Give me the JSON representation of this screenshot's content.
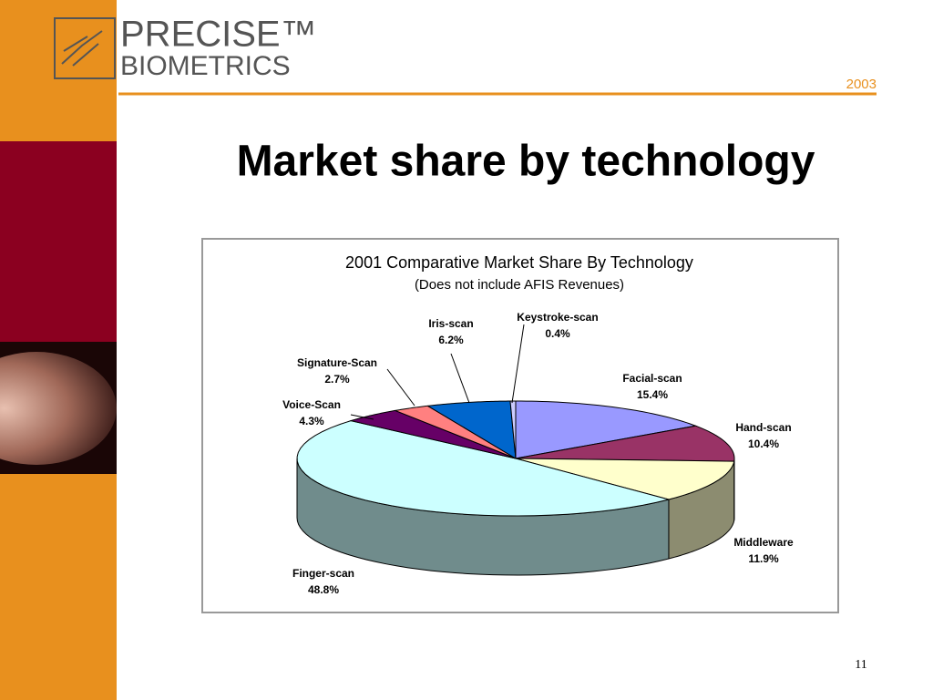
{
  "slide": {
    "logo_top": "PRECISE™",
    "logo_bottom": "BIOMETRICS",
    "year": "2003",
    "title": "Market share by technology",
    "page_number": "11"
  },
  "chart_data": {
    "type": "pie",
    "title": "2001 Comparative Market Share By Technology",
    "subtitle": "(Does not include AFIS Revenues)",
    "categories": [
      "Facial-scan",
      "Hand-scan",
      "Middleware",
      "Finger-scan",
      "Voice-Scan",
      "Signature-Scan",
      "Iris-scan",
      "Keystroke-scan"
    ],
    "values": [
      15.4,
      10.4,
      11.9,
      48.8,
      4.3,
      2.7,
      6.2,
      0.4
    ],
    "value_labels": [
      "15.4%",
      "10.4%",
      "11.9%",
      "48.8%",
      "4.3%",
      "2.7%",
      "6.2%",
      "0.4%"
    ],
    "colors": [
      "#9999ff",
      "#993366",
      "#ffffcc",
      "#ccffff",
      "#660066",
      "#ff8080",
      "#0066cc",
      "#ccccff"
    ]
  }
}
